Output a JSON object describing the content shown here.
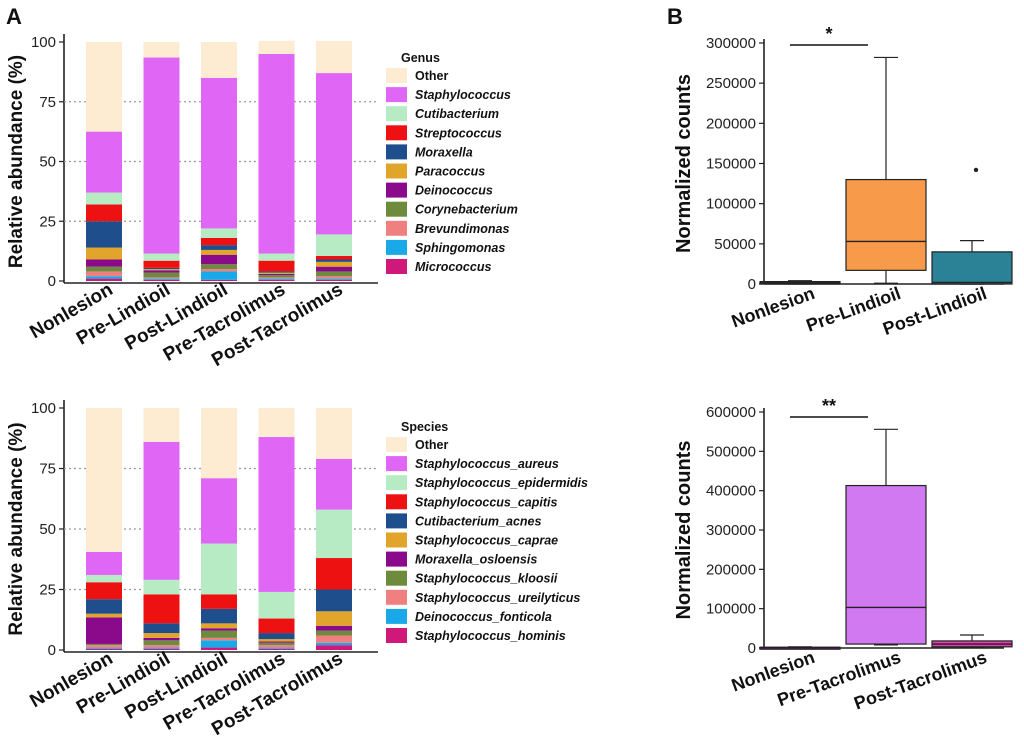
{
  "panel_labels": {
    "a": "A",
    "b": "B"
  },
  "chart_data": [
    {
      "id": "a_top",
      "type": "bar",
      "stacked": true,
      "title": "",
      "xlabel": "",
      "ylabel": "Relative abundance (%)",
      "ylim": [
        0,
        100
      ],
      "yticks": [
        0,
        25,
        50,
        75,
        100
      ],
      "grid": "dotted horizontal at ticks 25, 50, 75",
      "categories": [
        "Nonlesion",
        "Pre-Lindioil",
        "Post-Lindioil",
        "Pre-Tacrolimus",
        "Post-Tacrolimus"
      ],
      "legend_title": "Genus",
      "legend_position": "right",
      "series": [
        {
          "name": "Micrococcus",
          "color": "#d0177a",
          "values": [
            1,
            0.5,
            0.5,
            0.5,
            0.5
          ]
        },
        {
          "name": "Sphingomonas",
          "color": "#19a9e8",
          "values": [
            1,
            0.5,
            3.5,
            0.5,
            0.5
          ]
        },
        {
          "name": "Brevundimonas",
          "color": "#f08080",
          "values": [
            2,
            0.5,
            1,
            0.5,
            1
          ]
        },
        {
          "name": "Corynebacterium",
          "color": "#6e8b3d",
          "values": [
            2,
            2,
            2,
            1,
            2
          ]
        },
        {
          "name": "Deinococcus",
          "color": "#8b0a8b",
          "values": [
            3,
            1,
            4,
            0.5,
            2
          ]
        },
        {
          "name": "Paracoccus",
          "color": "#e0a52a",
          "values": [
            5,
            0.5,
            2,
            0.5,
            2
          ]
        },
        {
          "name": "Moraxella",
          "color": "#1f4e8c",
          "values": [
            11,
            0.5,
            2,
            0.5,
            1
          ]
        },
        {
          "name": "Streptococcus",
          "color": "#ee1111",
          "values": [
            7,
            3,
            3,
            4.5,
            1.5
          ]
        },
        {
          "name": "Cutibacterium",
          "color": "#b6ebc4",
          "values": [
            5,
            3,
            4,
            3,
            9
          ]
        },
        {
          "name": "Staphylococcus",
          "color": "#e066f5",
          "values": [
            25.5,
            82,
            63,
            83.5,
            67.5
          ]
        },
        {
          "name": "Other",
          "color": "#fdecd2",
          "values": [
            37.5,
            6.5,
            15,
            5.5,
            13.5
          ]
        }
      ]
    },
    {
      "id": "a_bottom",
      "type": "bar",
      "stacked": true,
      "title": "",
      "xlabel": "",
      "ylabel": "Relative abundance (%)",
      "ylim": [
        0,
        100
      ],
      "yticks": [
        0,
        25,
        50,
        75,
        100
      ],
      "grid": "dotted horizontal at ticks 25, 50, 75",
      "categories": [
        "Nonlesion",
        "Pre-Lindioil",
        "Post-Lindioil",
        "Pre-Tacrolimus",
        "Post-Tacrolimus"
      ],
      "legend_title": "Species",
      "legend_position": "right",
      "series": [
        {
          "name": "Staphylococcus_hominis",
          "color": "#d0177a",
          "values": [
            0.5,
            0.5,
            1,
            0.5,
            2
          ]
        },
        {
          "name": "Deinococcus_fonticola",
          "color": "#19a9e8",
          "values": [
            0.5,
            0.5,
            3,
            0.5,
            1
          ]
        },
        {
          "name": "Staphylococcus_ureilyticus",
          "color": "#f08080",
          "values": [
            1,
            1,
            1,
            1,
            3
          ]
        },
        {
          "name": "Staphylococcus_kloosii",
          "color": "#6e8b3d",
          "values": [
            0.5,
            2,
            3,
            1,
            2
          ]
        },
        {
          "name": "Moraxella_osloensis",
          "color": "#8b0a8b",
          "values": [
            11,
            1,
            1,
            0.5,
            2
          ]
        },
        {
          "name": "Staphylococcus_caprae",
          "color": "#e0a52a",
          "values": [
            1.5,
            2,
            2,
            1,
            6
          ]
        },
        {
          "name": "Cutibacterium_acnes",
          "color": "#1f4e8c",
          "values": [
            6,
            4,
            6,
            2.5,
            9
          ]
        },
        {
          "name": "Staphylococcus_capitis",
          "color": "#ee1111",
          "values": [
            7,
            12,
            6,
            6,
            13
          ]
        },
        {
          "name": "Staphylococcus_epidermidis",
          "color": "#b6ebc4",
          "values": [
            3,
            6,
            21,
            11,
            20
          ]
        },
        {
          "name": "Staphylococcus_aureus",
          "color": "#e066f5",
          "values": [
            9.5,
            57,
            27,
            64,
            21
          ]
        },
        {
          "name": "Other",
          "color": "#fdecd2",
          "values": [
            59.5,
            14,
            29,
            12,
            21
          ]
        }
      ]
    },
    {
      "id": "b_top",
      "type": "box",
      "title": "",
      "xlabel": "",
      "ylabel": "Normalized counts",
      "ylim": [
        0,
        300000
      ],
      "yticks": [
        0,
        50000,
        100000,
        150000,
        200000,
        250000,
        300000
      ],
      "categories": [
        "Nonlesion",
        "Pre-Lindioil",
        "Post-Lindioil"
      ],
      "boxes": [
        {
          "category": "Nonlesion",
          "color": "#1f4e8c",
          "min": 0,
          "q1": 0,
          "median": 1500,
          "q3": 3000,
          "max": 4000,
          "outliers": []
        },
        {
          "category": "Pre-Lindioil",
          "color": "#f79a4a",
          "min": 1000,
          "q1": 17000,
          "median": 53000,
          "q3": 130000,
          "max": 282000,
          "outliers": []
        },
        {
          "category": "Post-Lindioil",
          "color": "#2b8296",
          "min": 0,
          "q1": 0,
          "median": 2000,
          "q3": 40000,
          "max": 54000,
          "outliers": [
            142000
          ]
        }
      ],
      "significance": {
        "from": "Nonlesion",
        "to": "Pre-Lindioil",
        "label": "*"
      }
    },
    {
      "id": "b_bottom",
      "type": "box",
      "title": "",
      "xlabel": "",
      "ylabel": "Normalized counts",
      "ylim": [
        0,
        600000
      ],
      "yticks": [
        0,
        100000,
        200000,
        300000,
        400000,
        500000,
        600000
      ],
      "categories": [
        "Nonlesion",
        "Pre-Tacrolimus",
        "Post-Tacrolimus"
      ],
      "boxes": [
        {
          "category": "Nonlesion",
          "color": "#8b0a8b",
          "min": 0,
          "q1": 0,
          "median": 1000,
          "q3": 2000,
          "max": 3000,
          "outliers": []
        },
        {
          "category": "Pre-Tacrolimus",
          "color": "#d079f0",
          "min": 8000,
          "q1": 10000,
          "median": 103000,
          "q3": 413000,
          "max": 556000,
          "outliers": []
        },
        {
          "category": "Post-Tacrolimus",
          "color": "#e23fb0",
          "min": 2000,
          "q1": 3000,
          "median": 10000,
          "q3": 18000,
          "max": 33000,
          "outliers": []
        }
      ],
      "significance": {
        "from": "Nonlesion",
        "to": "Pre-Tacrolimus",
        "label": "**"
      }
    }
  ]
}
